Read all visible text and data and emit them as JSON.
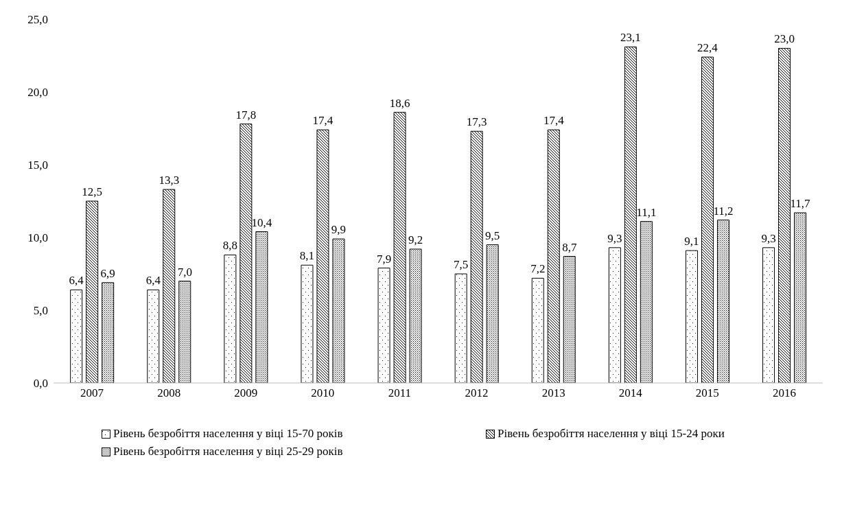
{
  "chart_data": {
    "type": "bar",
    "categories": [
      "2007",
      "2008",
      "2009",
      "2010",
      "2011",
      "2012",
      "2013",
      "2014",
      "2015",
      "2016"
    ],
    "series": [
      {
        "name": "Рівень безробіття населення у віці 15-70 років",
        "color": "#000000",
        "values": [
          6.4,
          6.4,
          8.8,
          8.1,
          7.9,
          7.5,
          7.2,
          9.3,
          9.1,
          9.3
        ],
        "value_labels": [
          "6,4",
          "6,4",
          "8,8",
          "8,1",
          "7,9",
          "7,5",
          "7,2",
          "9,3",
          "9,1",
          "9,3"
        ]
      },
      {
        "name": "Рівень безробіття населення у віці 15-24 роки",
        "color": "#000000",
        "values": [
          12.5,
          13.3,
          17.8,
          17.4,
          18.6,
          17.3,
          17.4,
          23.1,
          22.4,
          23.0
        ],
        "value_labels": [
          "12,5",
          "13,3",
          "17,8",
          "17,4",
          "18,6",
          "17,3",
          "17,4",
          "23,1",
          "22,4",
          "23,0"
        ]
      },
      {
        "name": "Рівень безробіття населення у віці 25-29 років",
        "color": "#000000",
        "values": [
          6.9,
          7.0,
          10.4,
          9.9,
          9.2,
          9.5,
          8.7,
          11.1,
          11.2,
          11.7
        ],
        "value_labels": [
          "6,9",
          "7,0",
          "10,4",
          "9,9",
          "9,2",
          "9,5",
          "8,7",
          "11,1",
          "11,2",
          "11,7"
        ]
      }
    ],
    "ylim": [
      0,
      25
    ],
    "yticks": [
      {
        "value": 0,
        "label": "0,0"
      },
      {
        "value": 5,
        "label": "5,0"
      },
      {
        "value": 10,
        "label": "10,0"
      },
      {
        "value": 15,
        "label": "15,0"
      },
      {
        "value": 20,
        "label": "20,0"
      },
      {
        "value": 25,
        "label": "25,0"
      }
    ],
    "grid": false,
    "legend": "bottom"
  }
}
